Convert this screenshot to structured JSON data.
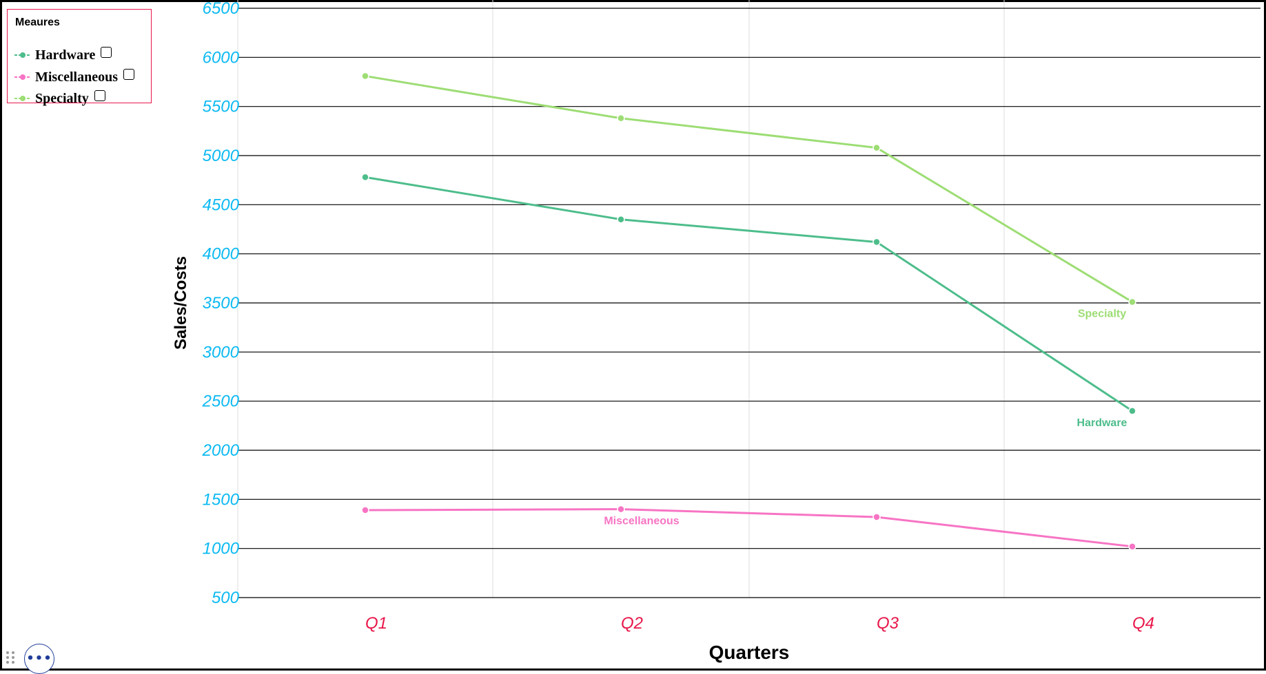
{
  "legend": {
    "title": "Meaures",
    "items": [
      {
        "label": "Hardware",
        "color": "#4dbd8b"
      },
      {
        "label": "Miscellaneous",
        "color": "#f774c4"
      },
      {
        "label": "Specialty",
        "color": "#9ddd74"
      }
    ]
  },
  "controls": {
    "more_label": "•••"
  },
  "colors": {
    "y_tick_color": "#0dbaf2",
    "x_tick_color": "#e8174a",
    "gridline_color": "#000000",
    "vertical_grid_color": "#dddddd",
    "frame_color": "#000000",
    "legend_border": "#e8174a",
    "more_button_color": "#1f3d99"
  },
  "chart_data": {
    "type": "line",
    "xlabel": "Quarters",
    "ylabel": "Sales/Costs",
    "categories": [
      "Q1",
      "Q2",
      "Q3",
      "Q4"
    ],
    "ylim": [
      500,
      6500
    ],
    "yticks": [
      500,
      1000,
      1500,
      2000,
      2500,
      3000,
      3500,
      4000,
      4500,
      5000,
      5500,
      6000,
      6500
    ],
    "grid": true,
    "legend_position": "top-left",
    "series": [
      {
        "name": "Hardware",
        "color": "#4dbd8b",
        "values": [
          4780,
          4350,
          4120,
          2400
        ],
        "end_label": "Hardware",
        "label_index": 3
      },
      {
        "name": "Miscellaneous",
        "color": "#f774c4",
        "values": [
          1390,
          1400,
          1320,
          1020
        ],
        "end_label": "Miscellaneous",
        "label_index": 1
      },
      {
        "name": "Specialty",
        "color": "#9ddd74",
        "values": [
          5810,
          5380,
          5080,
          3510
        ],
        "end_label": "Specialty",
        "label_index": 3
      }
    ]
  }
}
